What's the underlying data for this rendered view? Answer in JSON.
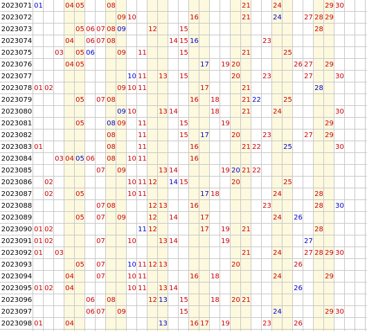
{
  "colors": {
    "red": "#cc0000",
    "blue": "#0000cc",
    "shade": "#fdf9de",
    "grid": "#c8c8c8"
  },
  "rows": [
    {
      "period": "2023071",
      "nums": [
        1,
        4,
        5,
        8,
        21,
        24,
        29,
        30
      ],
      "blue": [
        1
      ]
    },
    {
      "period": "2023072",
      "nums": [
        9,
        10,
        16,
        21,
        24,
        27,
        28,
        29
      ],
      "blue": [
        24
      ]
    },
    {
      "period": "2023073",
      "nums": [
        5,
        6,
        7,
        8,
        9,
        12,
        15,
        28
      ],
      "blue": [
        9
      ]
    },
    {
      "period": "2023074",
      "nums": [
        4,
        6,
        7,
        8,
        14,
        15,
        16,
        23
      ],
      "blue": [
        16
      ]
    },
    {
      "period": "2023075",
      "nums": [
        3,
        5,
        6,
        9,
        11,
        15,
        21,
        25
      ],
      "blue": [
        6
      ]
    },
    {
      "period": "2023076",
      "nums": [
        4,
        5,
        17,
        19,
        20,
        26,
        27,
        29
      ],
      "blue": [
        17
      ]
    },
    {
      "period": "2023077",
      "nums": [
        10,
        11,
        13,
        15,
        20,
        23,
        27,
        30
      ],
      "blue": [
        10
      ]
    },
    {
      "period": "2023078",
      "nums": [
        1,
        2,
        9,
        10,
        11,
        17,
        21,
        28
      ],
      "blue": [
        28
      ]
    },
    {
      "period": "2023079",
      "nums": [
        5,
        7,
        8,
        16,
        18,
        21,
        22,
        25
      ],
      "blue": [
        22
      ]
    },
    {
      "period": "2023080",
      "nums": [
        9,
        10,
        13,
        14,
        18,
        21,
        24,
        30
      ],
      "blue": [
        9
      ]
    },
    {
      "period": "2023081",
      "nums": [
        5,
        8,
        9,
        11,
        15,
        19,
        29
      ],
      "blue": [
        8
      ]
    },
    {
      "period": "2023082",
      "nums": [
        8,
        11,
        15,
        17,
        20,
        23,
        27,
        29
      ],
      "blue": [
        17
      ]
    },
    {
      "period": "2023083",
      "nums": [
        1,
        8,
        11,
        16,
        21,
        22,
        25,
        30
      ],
      "blue": [
        25
      ]
    },
    {
      "period": "2023084",
      "nums": [
        3,
        4,
        5,
        6,
        8,
        10,
        11,
        16
      ],
      "blue": [
        5
      ]
    },
    {
      "period": "2023085",
      "nums": [
        7,
        9,
        13,
        14,
        19,
        20,
        21,
        22
      ],
      "blue": [
        20
      ]
    },
    {
      "period": "2023086",
      "nums": [
        2,
        10,
        11,
        12,
        14,
        15,
        20,
        25
      ],
      "blue": [
        14
      ]
    },
    {
      "period": "2023087",
      "nums": [
        2,
        5,
        10,
        11,
        17,
        18,
        24,
        28
      ],
      "blue": [
        17
      ]
    },
    {
      "period": "2023088",
      "nums": [
        7,
        8,
        12,
        13,
        16,
        23,
        28,
        30
      ],
      "blue": [
        30
      ]
    },
    {
      "period": "2023089",
      "nums": [
        5,
        7,
        9,
        12,
        14,
        17,
        24,
        26
      ],
      "blue": [
        26
      ]
    },
    {
      "period": "2023090",
      "nums": [
        1,
        2,
        11,
        12,
        17,
        19,
        21,
        28
      ],
      "blue": [
        11
      ]
    },
    {
      "period": "2023091",
      "nums": [
        1,
        2,
        7,
        10,
        13,
        14,
        19,
        27
      ],
      "blue": [
        27
      ]
    },
    {
      "period": "2023092",
      "nums": [
        1,
        3,
        21,
        24,
        27,
        28,
        29,
        30
      ],
      "blue": []
    },
    {
      "period": "2023093",
      "nums": [
        5,
        7,
        10,
        11,
        12,
        13,
        20,
        26
      ],
      "blue": [
        10
      ]
    },
    {
      "period": "2023094",
      "nums": [
        4,
        7,
        10,
        11,
        16,
        18,
        24,
        29
      ],
      "blue": []
    },
    {
      "period": "2023095",
      "nums": [
        1,
        2,
        4,
        10,
        11,
        13,
        14,
        26
      ],
      "blue": [
        26
      ]
    },
    {
      "period": "2023096",
      "nums": [
        6,
        8,
        12,
        13,
        15,
        18,
        20,
        21
      ],
      "blue": [
        13
      ]
    },
    {
      "period": "2023097",
      "nums": [
        6,
        7,
        9,
        15,
        24,
        29,
        30
      ],
      "blue": [
        24
      ]
    },
    {
      "period": "2023098",
      "nums": [
        1,
        4,
        13,
        16,
        17,
        19,
        23,
        26
      ],
      "blue": [
        13
      ]
    }
  ]
}
